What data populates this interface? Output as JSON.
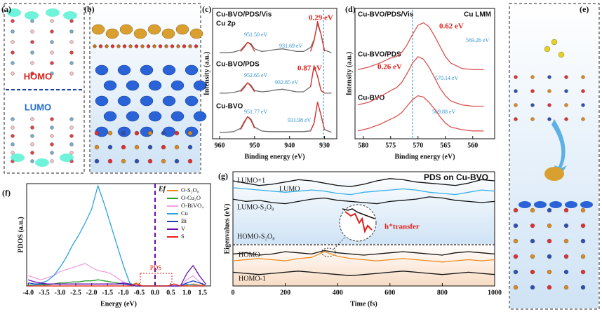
{
  "panel_labels": [
    "(a)",
    "(b)",
    "(c)",
    "(d)",
    "(e)",
    "(f)",
    "(g)"
  ],
  "panel_a": {
    "homo": "HOMO",
    "lumo": "LUMO"
  },
  "chart_data": [
    {
      "type": "line",
      "title": "Cu 2p",
      "x": [
        960,
        958,
        956,
        954,
        953,
        952,
        951,
        950,
        948,
        946,
        944,
        942,
        940,
        938,
        936,
        934,
        933,
        932,
        931,
        930,
        928
      ],
      "xlim": [
        962,
        926.5
      ],
      "xticks": [
        960,
        950,
        940,
        930
      ],
      "ylim": [
        0,
        100
      ],
      "xlabel": "Binding energy (eV)",
      "ylabel": "Intensity (a.u.)",
      "series": [
        {
          "name": "Cu-BVO/PDS/Vis",
          "color": "#6d6d6d",
          "values": [
            66,
            66,
            66.5,
            68,
            71,
            74,
            73,
            69,
            67,
            67.5,
            68.5,
            69,
            68,
            67,
            67,
            70,
            76,
            88,
            80,
            68,
            66
          ]
        },
        {
          "name": "Cu-BVO/PDS",
          "color": "#6d6d6d",
          "values": [
            35,
            35,
            35.5,
            37,
            40,
            43,
            41,
            37,
            36,
            36.5,
            37.5,
            38,
            37,
            36,
            36,
            40,
            56,
            48,
            37,
            35,
            35
          ]
        },
        {
          "name": "Cu-BVO",
          "color": "#6d6d6d",
          "values": [
            5,
            5,
            5.5,
            8,
            13,
            17,
            15,
            9,
            6,
            5.5,
            5.5,
            5.5,
            5.5,
            5.5,
            5.5,
            6,
            12,
            28,
            18,
            7,
            5
          ]
        },
        {
          "color": "#e0302a",
          "values": [
            null,
            null,
            null,
            67,
            70,
            74,
            72,
            67,
            null,
            null,
            null,
            null,
            null,
            null,
            null,
            67,
            75,
            90,
            80,
            67,
            null
          ]
        },
        {
          "color": "#e0302a",
          "values": [
            null,
            null,
            null,
            36,
            39,
            43,
            40,
            36,
            null,
            null,
            null,
            null,
            null,
            null,
            null,
            40,
            56,
            48,
            37,
            35,
            null
          ]
        },
        {
          "color": "#e0302a",
          "values": [
            null,
            null,
            null,
            7,
            12,
            17,
            14,
            8,
            null,
            null,
            null,
            null,
            null,
            null,
            null,
            6,
            12,
            28,
            18,
            7,
            null
          ]
        }
      ],
      "annotations": [
        "951.50 eV",
        "931.69 eV",
        "0.29 eV",
        "952.65 eV",
        "932.85 eV",
        "0.87 eV",
        "951.77 eV",
        "931.98 eV"
      ]
    },
    {
      "type": "line",
      "title": "Cu LMM",
      "x": [
        581,
        579,
        577,
        575,
        574,
        573,
        572,
        571,
        570,
        569,
        568,
        567,
        566,
        565,
        564,
        562,
        560,
        558
      ],
      "xlim": [
        581.5,
        556
      ],
      "xticks": [
        580,
        575,
        570,
        565,
        560
      ],
      "ylim": [
        0,
        100
      ],
      "xlabel": "Binding energy (eV)",
      "ylabel": "Intensity (a.u.)",
      "series": [
        {
          "name": "Cu-BVO/PDS/Vis",
          "color": "#d9534f",
          "values": [
            53,
            55,
            58,
            62,
            63,
            66,
            72,
            80,
            87,
            89,
            86,
            79,
            71,
            63,
            58,
            54,
            53,
            53
          ]
        },
        {
          "name": "Cu-BVO/PDS",
          "color": "#d9534f",
          "values": [
            26,
            28,
            32,
            37,
            39,
            43,
            50,
            58,
            63,
            61,
            55,
            47,
            39,
            33,
            29,
            26,
            25,
            25
          ]
        },
        {
          "name": "Cu-BVO",
          "color": "#d9534f",
          "values": [
            6,
            8,
            11,
            15,
            17,
            20,
            25,
            30,
            33,
            32,
            28,
            23,
            17,
            12,
            9,
            7,
            6,
            6
          ]
        }
      ],
      "annotations": [
        "0.62 eV",
        "569.26 eV",
        "0.26 eV",
        "570.14 eV",
        "569.88 eV"
      ]
    },
    {
      "type": "line",
      "legend": "upper right",
      "x": [
        -4,
        -3.8,
        -3.6,
        -3.4,
        -3.2,
        -3,
        -2.8,
        -2.6,
        -2.4,
        -2.2,
        -2,
        -1.8,
        -1.6,
        -1.4,
        -1.2,
        -1,
        -0.8,
        -0.6,
        -0.4,
        -0.2,
        0,
        0.2,
        0.4,
        0.6,
        0.8,
        1,
        1.2,
        1.4,
        1.6
      ],
      "xlim": [
        -4.05,
        1.75
      ],
      "xticks": [
        {
          "value": -4,
          "label": "-4.0"
        },
        -3.5,
        {
          "value": -3,
          "label": "-3.0"
        },
        -2.5,
        {
          "value": -2,
          "label": "-2.0"
        },
        -1.5,
        {
          "value": -1,
          "label": "-1.0"
        },
        -0.5,
        {
          "value": 0,
          "label": "0.0"
        },
        0.5,
        {
          "value": 1,
          "label": "1.0"
        },
        1.5
      ],
      "ylim": [
        0,
        100
      ],
      "xlabel": "Energy (eV)",
      "ylabel": "PDOS (a.u.)",
      "series": [
        {
          "name": "O-S₂O₈",
          "color": "#e8901a",
          "values": [
            0,
            0,
            0,
            0,
            0,
            0,
            0,
            0,
            0,
            0,
            0,
            0,
            0,
            0,
            0,
            0,
            0,
            3,
            0,
            0,
            0,
            0,
            0,
            2,
            0,
            1,
            2,
            1,
            0
          ]
        },
        {
          "name": "O-Cu₂O",
          "color": "#2ca02c",
          "values": [
            1,
            1,
            1,
            1,
            2,
            3,
            3,
            4,
            4,
            5,
            5,
            6,
            5,
            4,
            3,
            2,
            1,
            0,
            0,
            0,
            0,
            0,
            0,
            0,
            0,
            0,
            0,
            0,
            0
          ]
        },
        {
          "name": "O-BiVO₄",
          "color": "#f0a0e0",
          "values": [
            10,
            8,
            6,
            8,
            10,
            14,
            16,
            18,
            20,
            22,
            18,
            15,
            14,
            12,
            8,
            4,
            1,
            0,
            0,
            0,
            0,
            0,
            0,
            0,
            0,
            6,
            10,
            4,
            0
          ]
        },
        {
          "name": "Cu",
          "color": "#29a3e0",
          "values": [
            0,
            1,
            3,
            5,
            10,
            18,
            28,
            40,
            50,
            62,
            75,
            98,
            80,
            60,
            40,
            20,
            3,
            0,
            0,
            0,
            0,
            0,
            0,
            0,
            0,
            2,
            1,
            0,
            0
          ]
        },
        {
          "name": "Bi",
          "color": "#1f3fbf",
          "values": [
            3,
            2,
            2,
            2,
            2,
            2,
            2,
            2,
            2,
            2,
            2,
            2,
            2,
            2,
            2,
            2,
            1,
            0,
            0,
            0,
            0,
            0,
            0,
            0,
            0,
            3,
            5,
            3,
            1
          ]
        },
        {
          "name": "V",
          "color": "#6a0dad",
          "values": [
            6,
            4,
            3,
            2,
            2,
            2,
            2,
            2,
            2,
            2,
            2,
            2,
            2,
            2,
            2,
            3,
            2,
            0,
            0,
            0,
            0,
            0,
            0,
            0,
            0,
            12,
            20,
            10,
            2
          ]
        },
        {
          "name": "S",
          "color": "#e8201a",
          "values": [
            0,
            0,
            0,
            0,
            0,
            0,
            0,
            0,
            0,
            0,
            0,
            0,
            0,
            0,
            0,
            0,
            0,
            2,
            0,
            0,
            0,
            0,
            0,
            2,
            0,
            0,
            0,
            0,
            0
          ]
        }
      ],
      "annotations": [
        "Ef",
        "PDS"
      ]
    },
    {
      "type": "line",
      "title": "PDS on Cu-BVO",
      "x": [
        0,
        50,
        100,
        150,
        200,
        250,
        300,
        350,
        400,
        450,
        500,
        550,
        600,
        650,
        700,
        750,
        800,
        850,
        900,
        950,
        1000
      ],
      "xlim": [
        0,
        1000
      ],
      "xticks": [
        0,
        200,
        400,
        600,
        800,
        1000
      ],
      "ylim": [
        0,
        100
      ],
      "xlabel": "Time (fs)",
      "ylabel": "Eigenvalues (eV)",
      "series": [
        {
          "name": "LUMO+1",
          "color": "#111111",
          "values": [
            92,
            90,
            88,
            89,
            91,
            93,
            92,
            90,
            88,
            87,
            89,
            92,
            94,
            93,
            91,
            90,
            89,
            88,
            90,
            93,
            92
          ]
        },
        {
          "name": "LUMO",
          "color": "#3ab0e8",
          "values": [
            86,
            85,
            84,
            83,
            82,
            83,
            84,
            83,
            81,
            80,
            82,
            83,
            84,
            85,
            84,
            82,
            81,
            80,
            82,
            84,
            83
          ]
        },
        {
          "name": "LUMO-S₂O₈",
          "color": "#111111",
          "values": [
            76,
            74,
            75,
            73,
            72,
            74,
            76,
            77,
            75,
            74,
            73,
            72,
            74,
            75,
            76,
            78,
            77,
            75,
            74,
            73,
            74
          ]
        },
        {
          "name": "HOMO-S₂O₈",
          "color": "#111111",
          "dash": true,
          "values": [
            36,
            36,
            36,
            36,
            36,
            36,
            36,
            36,
            36,
            36,
            36,
            36,
            36,
            36,
            36,
            36,
            36,
            36,
            36,
            36,
            36
          ]
        },
        {
          "color": "#111111",
          "values": [
            28,
            29,
            27,
            28,
            30,
            29,
            28,
            31,
            29,
            28,
            27,
            28,
            29,
            30,
            29,
            28,
            27,
            29,
            30,
            29,
            28
          ]
        },
        {
          "name": "HOMO",
          "color": "#f08a1c",
          "values": [
            22,
            23,
            24,
            23,
            22,
            24,
            25,
            30,
            26,
            24,
            23,
            22,
            23,
            24,
            23,
            22,
            21,
            22,
            23,
            22,
            23
          ]
        },
        {
          "name": "HOMO-1",
          "color": "#111111",
          "values": [
            12,
            11,
            10,
            11,
            12,
            13,
            12,
            11,
            10,
            9,
            10,
            11,
            12,
            13,
            12,
            11,
            10,
            11,
            12,
            11,
            10
          ]
        }
      ],
      "annotations": [
        "h⁺transfer"
      ]
    }
  ]
}
